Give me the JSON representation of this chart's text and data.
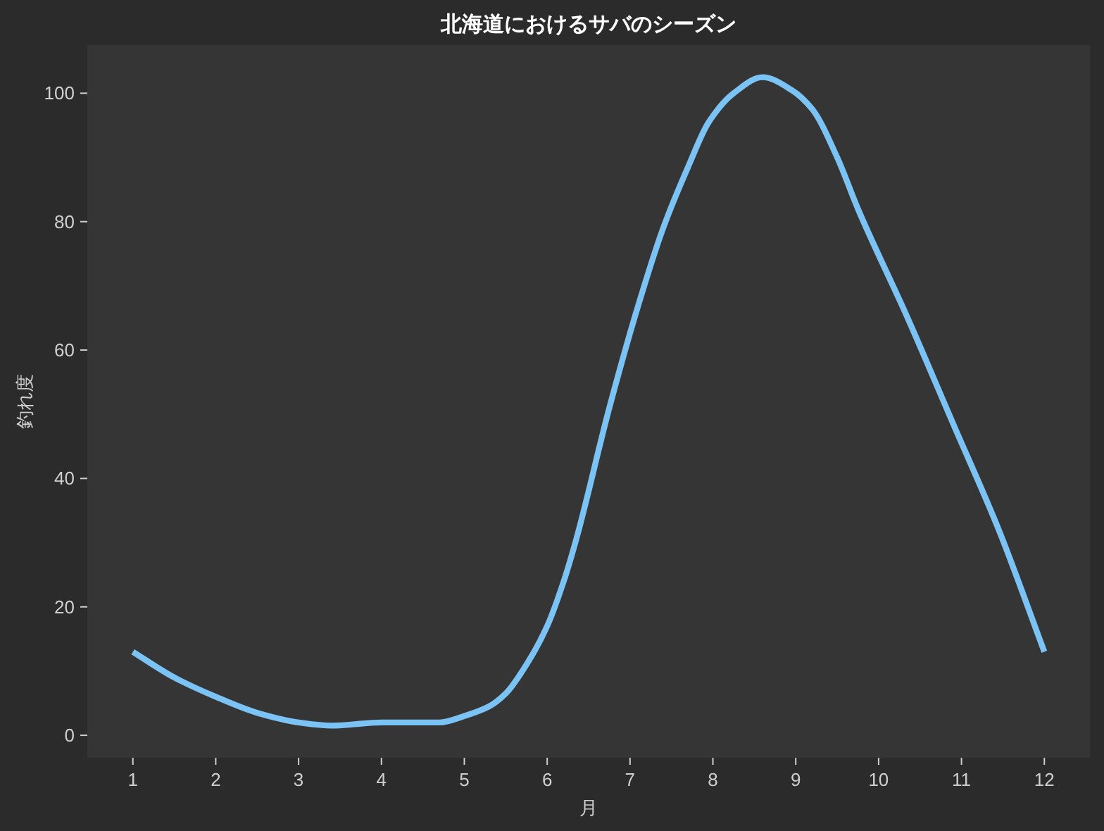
{
  "chart_data": {
    "type": "line",
    "title": "北海道におけるサバのシーズン",
    "xlabel": "月",
    "ylabel": "釣れ度",
    "x": [
      1,
      1.5,
      2,
      2.5,
      3,
      3.4,
      4,
      4.7,
      5,
      5.3,
      5.5,
      5.75,
      6,
      6.2,
      6.35,
      6.75,
      7.1,
      7.4,
      7.7,
      7.95,
      8.25,
      8.6,
      8.95,
      9.2,
      9.5,
      9.75,
      10.35,
      10.9,
      11.45,
      12
    ],
    "series": [
      {
        "color": "#7bc3f5",
        "values": [
          13,
          9,
          6,
          3.5,
          2,
          1.5,
          2,
          2,
          3,
          4.5,
          6.5,
          11,
          17,
          24,
          30.5,
          51,
          67,
          79,
          88.5,
          95.5,
          100,
          102.5,
          100.5,
          97.5,
          90,
          82,
          65,
          48.5,
          32,
          13
        ]
      }
    ],
    "xlim": [
      0.45,
      12.55
    ],
    "ylim": [
      -3.5,
      107.5
    ],
    "xticks": [
      1,
      2,
      3,
      4,
      5,
      6,
      7,
      8,
      9,
      10,
      11,
      12
    ],
    "yticks": [
      0,
      20,
      40,
      60,
      80,
      100
    ],
    "grid": false,
    "marker": "none",
    "line_style": "solid"
  }
}
